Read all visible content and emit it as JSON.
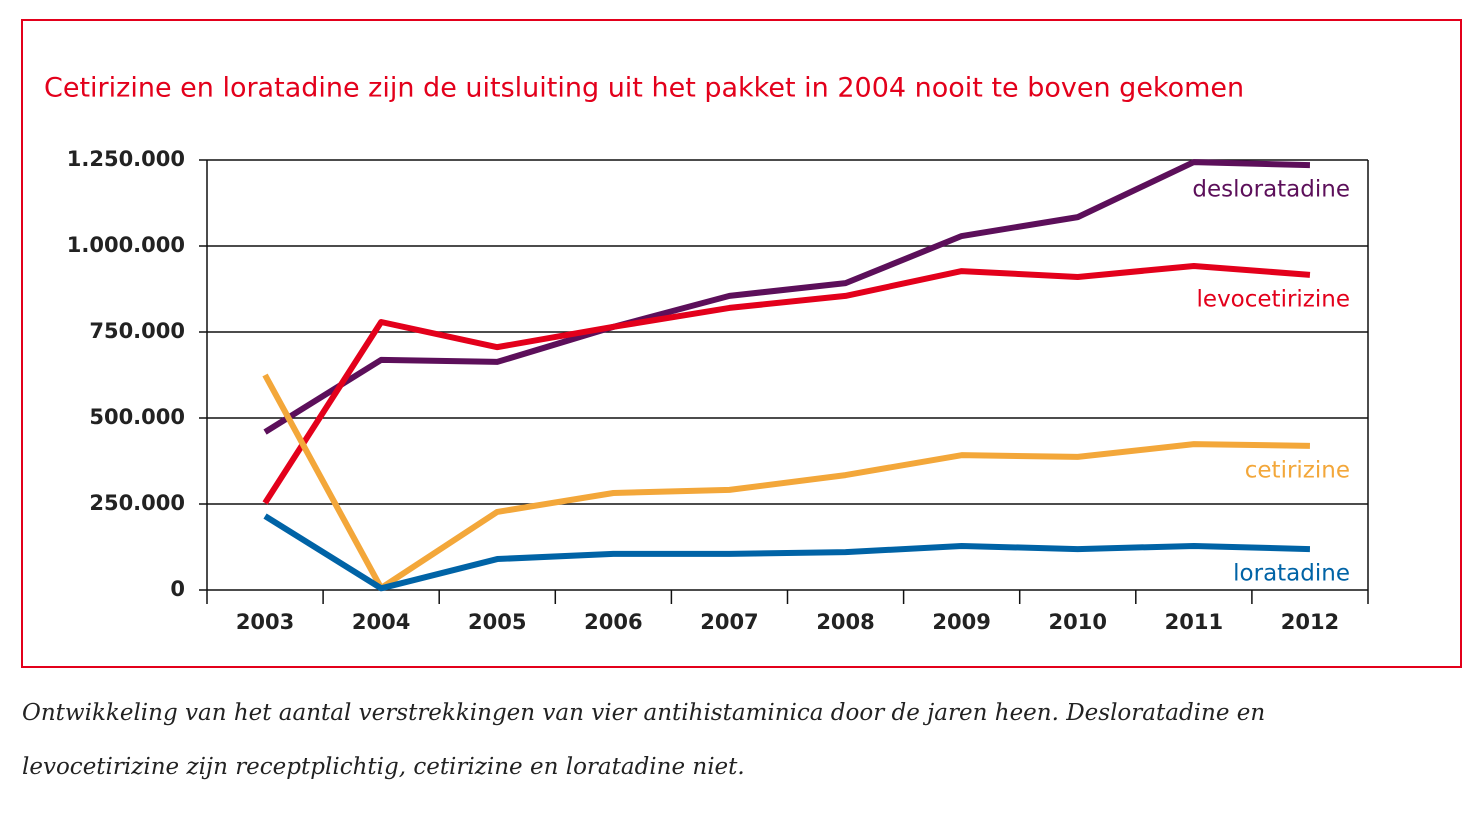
{
  "chart_data": {
    "type": "line",
    "title": "Cetirizine en loratadine zijn de uitsluiting uit het pakket in 2004 nooit te boven gekomen",
    "categories": [
      "2003",
      "2004",
      "2005",
      "2006",
      "2007",
      "2008",
      "2009",
      "2010",
      "2011",
      "2012"
    ],
    "series": [
      {
        "name": "desloratadine",
        "color": "#5c0f5a",
        "values": [
          459000,
          669000,
          663000,
          765000,
          855000,
          892000,
          1029000,
          1084000,
          1244000,
          1235000
        ]
      },
      {
        "name": "levocetirizine",
        "color": "#e3001b",
        "values": [
          253000,
          779000,
          706000,
          765000,
          820000,
          855000,
          927000,
          910000,
          942000,
          916000
        ]
      },
      {
        "name": "cetirizine",
        "color": "#f3a73a",
        "values": [
          625000,
          6000,
          227000,
          282000,
          291000,
          334000,
          392000,
          387000,
          424000,
          419000
        ]
      },
      {
        "name": "loratadine",
        "color": "#0063a6",
        "values": [
          215000,
          5000,
          90000,
          105000,
          105000,
          110000,
          128000,
          119000,
          128000,
          119000
        ]
      }
    ],
    "ylim": [
      0,
      1250000
    ],
    "yticks": [
      0,
      {
        "value": 250000,
        "label": "250.000"
      },
      {
        "value": 500000,
        "label": "500.000"
      },
      {
        "value": 750000,
        "label": "750.000"
      },
      {
        "value": 1000000,
        "label": "1.000.000"
      },
      {
        "value": 1250000,
        "label": "1.250.000"
      }
    ],
    "grid": true,
    "caption": "Ontwikkeling van het aantal verstrekkingen van vier antihistaminica door de jaren heen. Desloratadine en levocetirizine zijn receptplichtig, cetirizine en loratadine niet."
  }
}
